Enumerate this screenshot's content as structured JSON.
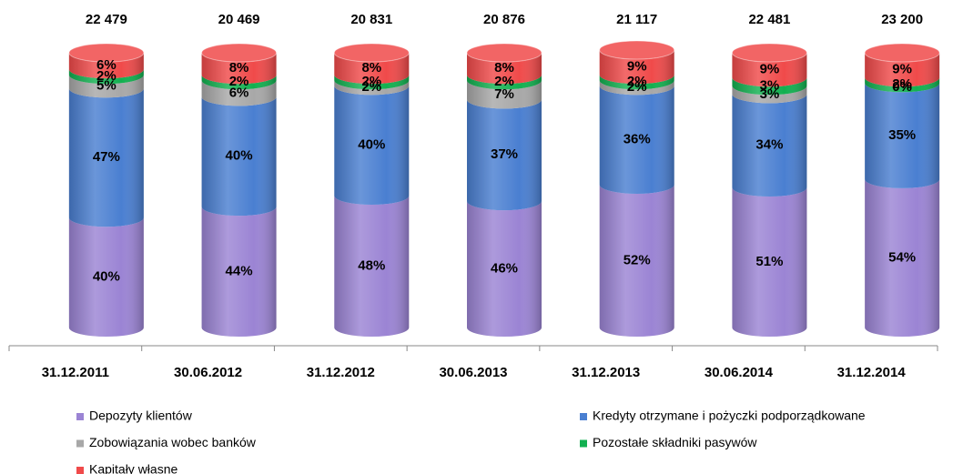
{
  "chart_data": {
    "type": "bar",
    "categories": [
      "31.12.2011",
      "30.06.2012",
      "31.12.2012",
      "30.06.2013",
      "31.12.2013",
      "30.06.2014",
      "31.12.2014"
    ],
    "totals": [
      "22 479",
      "20 469",
      "20 831",
      "20 876",
      "21 117",
      "22 481",
      "23 200"
    ],
    "ylim": [
      0,
      102
    ],
    "series": [
      {
        "name": "Depozyty klientów",
        "color": "#9b84d4",
        "values": [
          40,
          44,
          48,
          46,
          52,
          51,
          54
        ],
        "value_labels": [
          "40%",
          "44%",
          "48%",
          "46%",
          "52%",
          "51%",
          "54%"
        ]
      },
      {
        "name": "Kredyty otrzymane i pożyczki podporządkowane",
        "color": "#4a7fd1",
        "values": [
          47,
          40,
          40,
          37,
          36,
          34,
          35
        ],
        "value_labels": [
          "47%",
          "40%",
          "40%",
          "37%",
          "36%",
          "34%",
          "35%"
        ]
      },
      {
        "name": "Zobowiązania wobec banków",
        "color": "#a8a8a8",
        "values": [
          5,
          6,
          2,
          7,
          2,
          3,
          0
        ],
        "value_labels": [
          "5%",
          "6%",
          "2%",
          "7%",
          "2%",
          "3%",
          "0%"
        ]
      },
      {
        "name": "Pozostałe składniki pasywów",
        "color": "#12b050",
        "values": [
          2,
          2,
          2,
          2,
          2,
          3,
          2
        ],
        "value_labels": [
          "2%",
          "2%",
          "2%",
          "2%",
          "2%",
          "3%",
          "2%"
        ]
      },
      {
        "name": "Kapitały własne",
        "color": "#f04a4a",
        "values": [
          6,
          8,
          8,
          8,
          9,
          9,
          9
        ],
        "value_labels": [
          "6%",
          "8%",
          "8%",
          "8%",
          "9%",
          "9%",
          "9%"
        ]
      }
    ]
  }
}
